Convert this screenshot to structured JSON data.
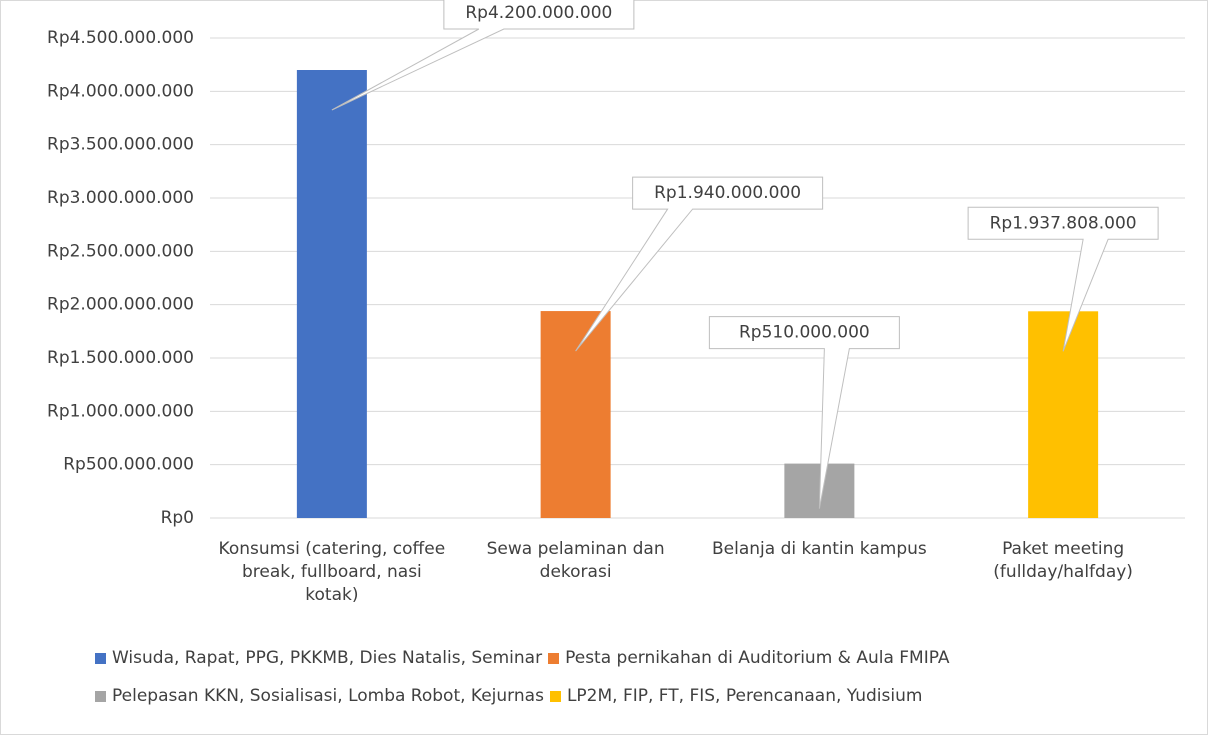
{
  "chart_data": {
    "type": "bar",
    "categories": [
      "Konsumsi (catering, coffee break, fullboard, nasi kotak)",
      "Sewa pelaminan dan dekorasi",
      "Belanja di kantin kampus",
      "Paket meeting (fullday/halfday)"
    ],
    "series": [
      {
        "name": "Wisuda, Rapat, PPG, PKKMB, Dies Natalis, Seminar",
        "color": "#4472c4",
        "values": [
          4200000000,
          null,
          null,
          null
        ],
        "value_labels": [
          "Rp4.200.000.000",
          null,
          null,
          null
        ]
      },
      {
        "name": "Pesta pernikahan di Auditorium & Aula FMIPA",
        "color": "#ed7d31",
        "values": [
          null,
          1940000000,
          null,
          null
        ],
        "value_labels": [
          null,
          "Rp1.940.000.000",
          null,
          null
        ]
      },
      {
        "name": "Pelepasan KKN, Sosialisasi, Lomba Robot, Kejurnas",
        "color": "#a5a5a5",
        "values": [
          null,
          null,
          510000000,
          null
        ],
        "value_labels": [
          null,
          null,
          "Rp510.000.000",
          null
        ]
      },
      {
        "name": "LP2M, FIP, FT, FIS, Perencanaan, Yudisium",
        "color": "#ffc000",
        "values": [
          null,
          null,
          null,
          1937808000
        ],
        "value_labels": [
          null,
          null,
          null,
          "Rp1.937.808.000"
        ]
      }
    ],
    "ylim": [
      0,
      4500000000
    ],
    "yticks": [
      {
        "value": 0,
        "label": "Rp0"
      },
      {
        "value": 500000000,
        "label": "Rp500.000.000"
      },
      {
        "value": 1000000000,
        "label": "Rp1.000.000.000"
      },
      {
        "value": 1500000000,
        "label": "Rp1.500.000.000"
      },
      {
        "value": 2000000000,
        "label": "Rp2.000.000.000"
      },
      {
        "value": 2500000000,
        "label": "Rp2.500.000.000"
      },
      {
        "value": 3000000000,
        "label": "Rp3.000.000.000"
      },
      {
        "value": 3500000000,
        "label": "Rp3.500.000.000"
      },
      {
        "value": 4000000000,
        "label": "Rp4.000.000.000"
      },
      {
        "value": 4500000000,
        "label": "Rp4.500.000.000"
      }
    ],
    "grid": true,
    "legend": "bottom"
  }
}
